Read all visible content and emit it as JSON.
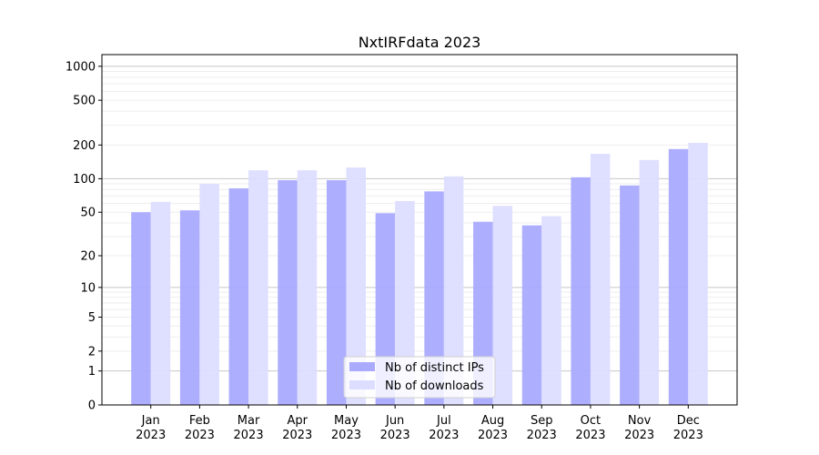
{
  "chart_data": {
    "type": "bar",
    "title": "NxtIRFdata 2023",
    "xlabel": "",
    "ylabel": "",
    "yscale": "log(1+y)",
    "ylim": [
      0,
      1270
    ],
    "grid": true,
    "legend_position": "bottom-center",
    "categories": [
      "Jan\n2023",
      "Feb\n2023",
      "Mar\n2023",
      "Apr\n2023",
      "May\n2023",
      "Jun\n2023",
      "Jul\n2023",
      "Aug\n2023",
      "Sep\n2023",
      "Oct\n2023",
      "Nov\n2023",
      "Dec\n2023"
    ],
    "yticks": [
      0,
      1,
      2,
      5,
      10,
      20,
      50,
      100,
      200,
      500,
      1000
    ],
    "series": [
      {
        "name": "Nb of distinct IPs",
        "color": "#aaaaff",
        "values": [
          50,
          52,
          82,
          97,
          97,
          49,
          77,
          41,
          38,
          103,
          87,
          184
        ]
      },
      {
        "name": "Nb of downloads",
        "color": "#ddddff",
        "values": [
          62,
          90,
          119,
          119,
          126,
          63,
          105,
          57,
          46,
          167,
          147,
          209
        ]
      }
    ]
  }
}
